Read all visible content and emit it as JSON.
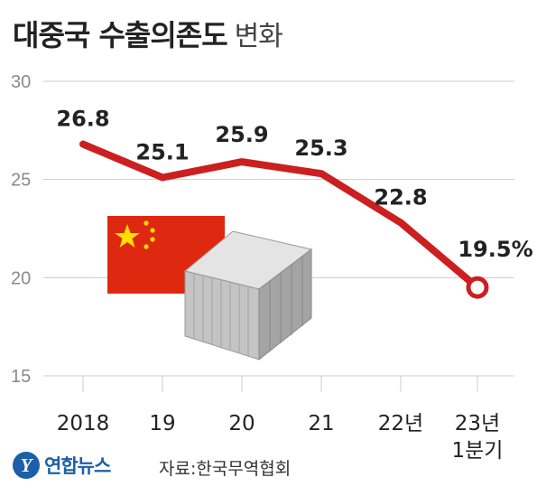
{
  "header": {
    "title": "대중국 수출의존도",
    "subtitle": "변화"
  },
  "footer": {
    "logo_mark": "Y",
    "logo_text": "연합뉴스",
    "source": "자료:한국무역협회"
  },
  "colors": {
    "line": "#cc1f1f",
    "grid": "#cccccc",
    "flag_red": "#de2910",
    "flag_star": "#ffde00",
    "container": "#b8b8b8"
  },
  "illustration": {
    "flag_icon": "china-flag-icon",
    "container_icon": "shipping-container-icon"
  },
  "chart_data": {
    "type": "line",
    "categories": [
      "2018",
      "19",
      "20",
      "21",
      "22년",
      "23년\n1분기"
    ],
    "series": [
      {
        "values": [
          26.8,
          25.1,
          25.9,
          25.3,
          22.8,
          19.5
        ]
      }
    ],
    "data_labels": [
      "26.8",
      "25.1",
      "25.9",
      "25.3",
      "22.8",
      "19.5%"
    ],
    "y_ticks": [
      30,
      25,
      20,
      15
    ],
    "ylim": [
      15,
      30
    ],
    "grid": true,
    "legend": "none",
    "title": "대중국 수출의존도 변화",
    "xlabel": "",
    "ylabel": ""
  }
}
